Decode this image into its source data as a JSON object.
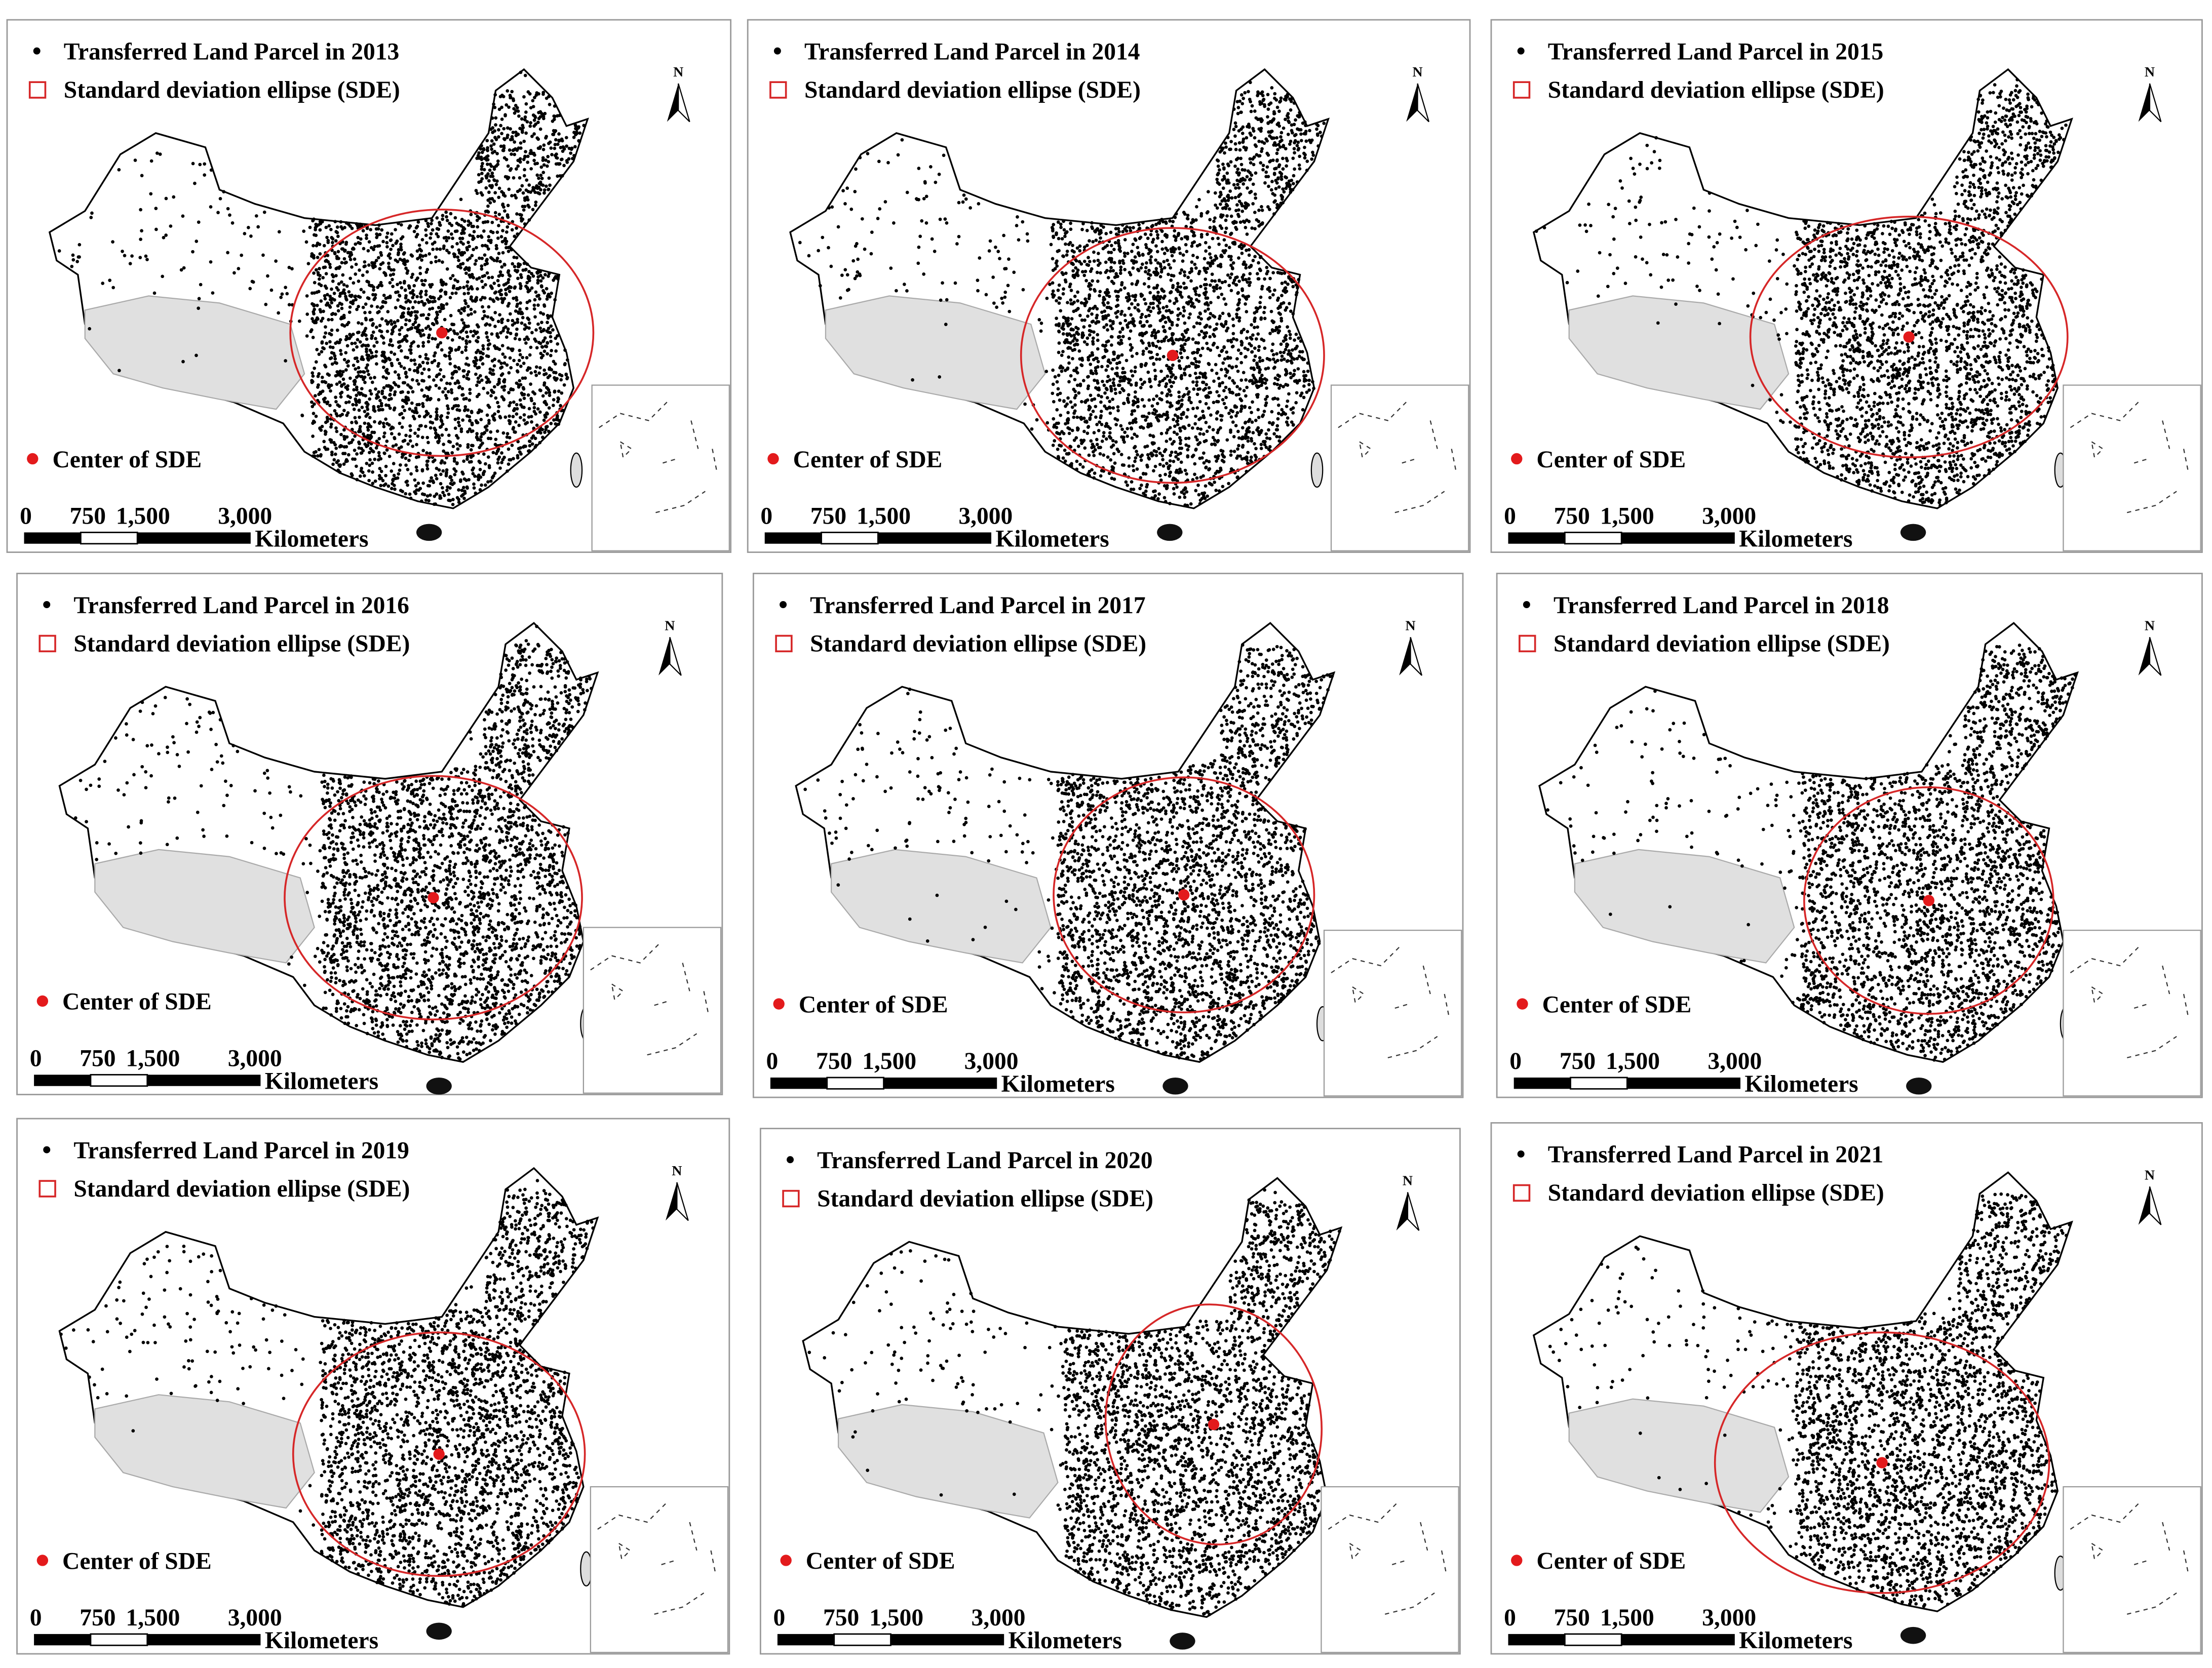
{
  "panels": [
    {
      "title": "Transferred Land Parcel in 2013"
    },
    {
      "title": "Transferred Land Parcel in 2014"
    },
    {
      "title": "Transferred Land Parcel in 2015"
    },
    {
      "title": "Transferred Land Parcel in 2016"
    },
    {
      "title": "Transferred Land Parcel in 2017"
    },
    {
      "title": "Transferred Land Parcel in 2018"
    },
    {
      "title": "Transferred Land Parcel in 2019"
    },
    {
      "title": "Transferred Land Parcel in 2020"
    },
    {
      "title": "Transferred Land Parcel in 2021"
    }
  ],
  "legend": {
    "sde": "Standard deviation ellipse (SDE)",
    "center": "Center of SDE"
  },
  "scale_bar": {
    "ticks": [
      "0",
      "750",
      "1,500",
      "3,000"
    ],
    "unit": "Kilometers"
  },
  "north": "N"
}
